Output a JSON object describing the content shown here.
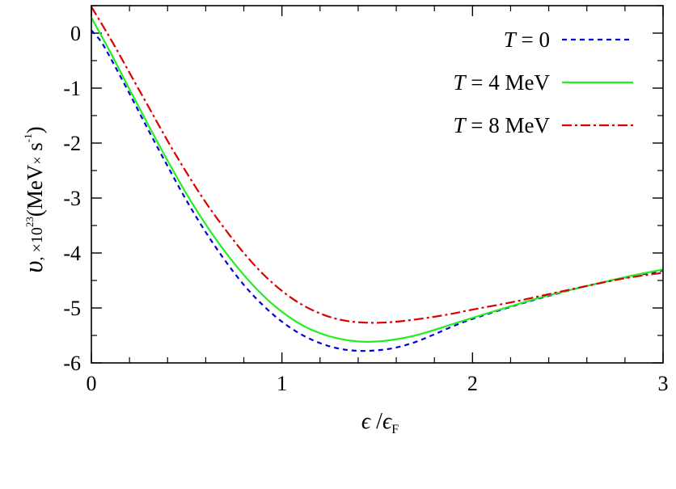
{
  "chart_data": {
    "type": "line",
    "xlabel": {
      "numerator_symbol": "ϵ",
      "separator": " /",
      "denominator_symbol": "ϵ",
      "denominator_subscript": "F"
    },
    "ylabel": {
      "symbol": "υ",
      "multiplier_prefix": ", ×10",
      "multiplier_exponent": "23",
      "unit_open": "(MeV",
      "unit_times": "×",
      "unit_s": " s",
      "unit_exponent": "-1",
      "unit_close": ")"
    },
    "xlim": [
      0,
      3
    ],
    "ylim": [
      -6,
      0.5
    ],
    "xticks": [
      0,
      1,
      2,
      3
    ],
    "xtick_labels": [
      "0",
      "1",
      "2",
      "3"
    ],
    "xminor_step": 0.2,
    "yticks": [
      0,
      -1,
      -2,
      -3,
      -4,
      -5,
      -6
    ],
    "ytick_labels": [
      "0",
      "-1",
      "-2",
      "-3",
      "-4",
      "-5",
      "-6"
    ],
    "yminor_step": 0.5,
    "grid": false,
    "legend_position": "top-right",
    "series": [
      {
        "name_italic": "T",
        "name_rest": " = 0",
        "color": "#0000dd",
        "dash": "6,5",
        "x": [
          0.0,
          0.05,
          0.1,
          0.2,
          0.3,
          0.4,
          0.5,
          0.6,
          0.7,
          0.8,
          0.9,
          1.0,
          1.1,
          1.2,
          1.3,
          1.4,
          1.5,
          1.6,
          1.7,
          1.8,
          1.9,
          2.0,
          2.2,
          2.4,
          2.6,
          2.8,
          3.0
        ],
        "y": [
          0.05,
          -0.15,
          -0.45,
          -1.1,
          -1.77,
          -2.42,
          -3.05,
          -3.62,
          -4.13,
          -4.58,
          -4.95,
          -5.25,
          -5.48,
          -5.64,
          -5.74,
          -5.78,
          -5.77,
          -5.72,
          -5.62,
          -5.48,
          -5.33,
          -5.2,
          -4.98,
          -4.78,
          -4.6,
          -4.45,
          -4.32
        ]
      },
      {
        "name_italic": "T",
        "name_rest": " = 4 MeV",
        "color": "#22ee22",
        "dash": "",
        "x": [
          0.0,
          0.1,
          0.2,
          0.3,
          0.4,
          0.5,
          0.6,
          0.7,
          0.8,
          0.9,
          1.0,
          1.1,
          1.2,
          1.3,
          1.4,
          1.5,
          1.6,
          1.7,
          1.8,
          1.9,
          2.0,
          2.2,
          2.4,
          2.6,
          2.8,
          3.0
        ],
        "y": [
          0.28,
          -0.35,
          -1.02,
          -1.68,
          -2.32,
          -2.93,
          -3.48,
          -3.97,
          -4.4,
          -4.77,
          -5.07,
          -5.3,
          -5.46,
          -5.56,
          -5.61,
          -5.61,
          -5.57,
          -5.5,
          -5.4,
          -5.29,
          -5.18,
          -4.97,
          -4.77,
          -4.6,
          -4.44,
          -4.3
        ]
      },
      {
        "name_italic": "T",
        "name_rest": " = 8 MeV",
        "color": "#dd0000",
        "dash": "12,4,3,4",
        "x": [
          0.0,
          0.1,
          0.2,
          0.3,
          0.4,
          0.5,
          0.6,
          0.7,
          0.8,
          0.9,
          1.0,
          1.1,
          1.2,
          1.3,
          1.4,
          1.5,
          1.6,
          1.7,
          1.8,
          1.9,
          2.0,
          2.2,
          2.4,
          2.6,
          2.8,
          3.0
        ],
        "y": [
          0.48,
          -0.1,
          -0.72,
          -1.34,
          -1.96,
          -2.54,
          -3.08,
          -3.56,
          -4.0,
          -4.38,
          -4.69,
          -4.93,
          -5.1,
          -5.21,
          -5.26,
          -5.27,
          -5.25,
          -5.21,
          -5.16,
          -5.1,
          -5.03,
          -4.9,
          -4.75,
          -4.6,
          -4.46,
          -4.36
        ]
      }
    ]
  }
}
